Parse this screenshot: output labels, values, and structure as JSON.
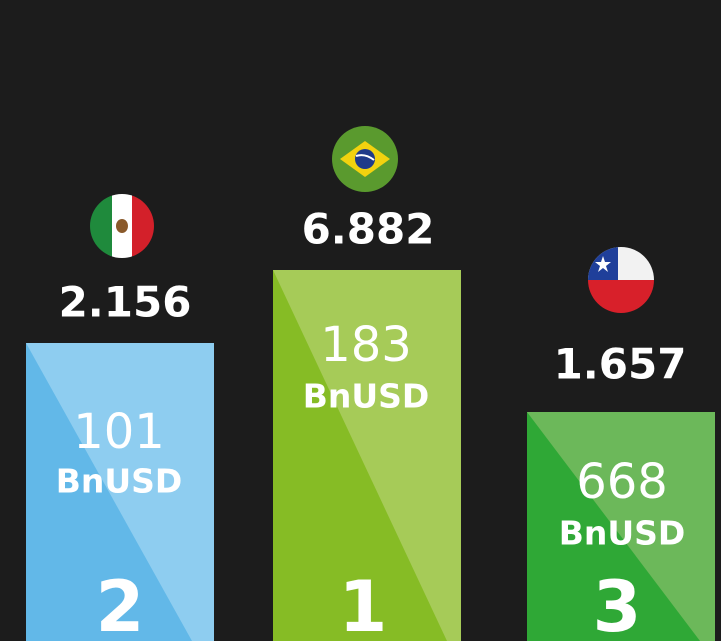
{
  "podium": [
    {
      "top_value": "2.156",
      "amount": "101",
      "unit": "BnUSD",
      "rank": "2"
    },
    {
      "top_value": "6.882",
      "amount": "183",
      "unit": "BnUSD",
      "rank": "1"
    },
    {
      "top_value": "1.657",
      "amount": "668",
      "unit": "BnUSD",
      "rank": "3"
    }
  ]
}
